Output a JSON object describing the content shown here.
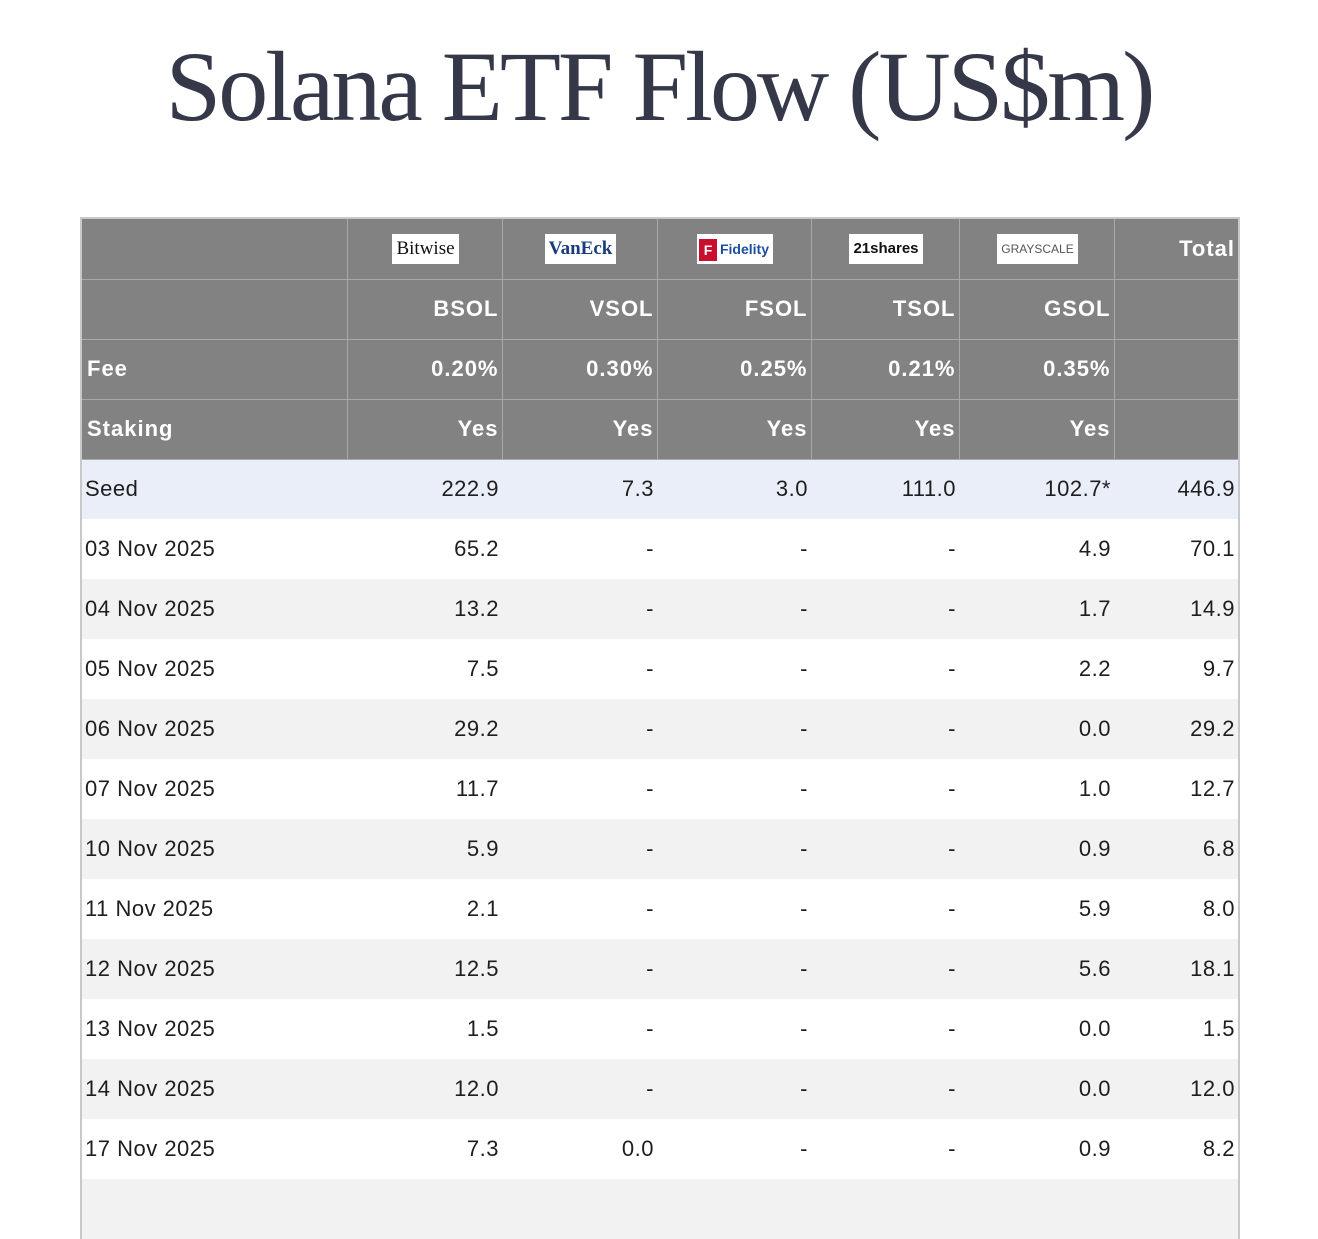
{
  "title": "Solana ETF Flow (US$m)",
  "issuers": [
    {
      "logo_text": "Bitwise",
      "ticker": "BSOL",
      "fee": "0.20%",
      "staking": "Yes",
      "logo_icon": "bitwise-logo"
    },
    {
      "logo_text": "VanEck",
      "ticker": "VSOL",
      "fee": "0.30%",
      "staking": "Yes",
      "logo_icon": "vaneck-logo"
    },
    {
      "logo_text": "Fidelity",
      "ticker": "FSOL",
      "fee": "0.25%",
      "staking": "Yes",
      "logo_icon": "fidelity-logo"
    },
    {
      "logo_text": "21shares",
      "ticker": "TSOL",
      "fee": "0.21%",
      "staking": "Yes",
      "logo_icon": "21shares-logo"
    },
    {
      "logo_text": "GRAYSCALE",
      "ticker": "GSOL",
      "fee": "0.35%",
      "staking": "Yes",
      "logo_icon": "grayscale-logo"
    }
  ],
  "header": {
    "total_label": "Total",
    "fee_label": "Fee",
    "staking_label": "Staking"
  },
  "rows": [
    {
      "date": "Seed",
      "values": [
        "222.9",
        "7.3",
        "3.0",
        "111.0",
        "102.7*"
      ],
      "total": "446.9"
    },
    {
      "date": "03 Nov 2025",
      "values": [
        "65.2",
        "-",
        "-",
        "-",
        "4.9"
      ],
      "total": "70.1"
    },
    {
      "date": "04 Nov 2025",
      "values": [
        "13.2",
        "-",
        "-",
        "-",
        "1.7"
      ],
      "total": "14.9"
    },
    {
      "date": "05 Nov 2025",
      "values": [
        "7.5",
        "-",
        "-",
        "-",
        "2.2"
      ],
      "total": "9.7"
    },
    {
      "date": "06 Nov 2025",
      "values": [
        "29.2",
        "-",
        "-",
        "-",
        "0.0"
      ],
      "total": "29.2"
    },
    {
      "date": "07 Nov 2025",
      "values": [
        "11.7",
        "-",
        "-",
        "-",
        "1.0"
      ],
      "total": "12.7"
    },
    {
      "date": "10 Nov 2025",
      "values": [
        "5.9",
        "-",
        "-",
        "-",
        "0.9"
      ],
      "total": "6.8"
    },
    {
      "date": "11 Nov 2025",
      "values": [
        "2.1",
        "-",
        "-",
        "-",
        "5.9"
      ],
      "total": "8.0"
    },
    {
      "date": "12 Nov 2025",
      "values": [
        "12.5",
        "-",
        "-",
        "-",
        "5.6"
      ],
      "total": "18.1"
    },
    {
      "date": "13 Nov 2025",
      "values": [
        "1.5",
        "-",
        "-",
        "-",
        "0.0"
      ],
      "total": "1.5"
    },
    {
      "date": "14 Nov 2025",
      "values": [
        "12.0",
        "-",
        "-",
        "-",
        "0.0"
      ],
      "total": "12.0"
    },
    {
      "date": "17 Nov 2025",
      "values": [
        "7.3",
        "0.0",
        "-",
        "-",
        "0.9"
      ],
      "total": "8.2"
    },
    {
      "date": "",
      "values": [
        "",
        "",
        "",
        "",
        ""
      ],
      "total": ""
    }
  ]
}
